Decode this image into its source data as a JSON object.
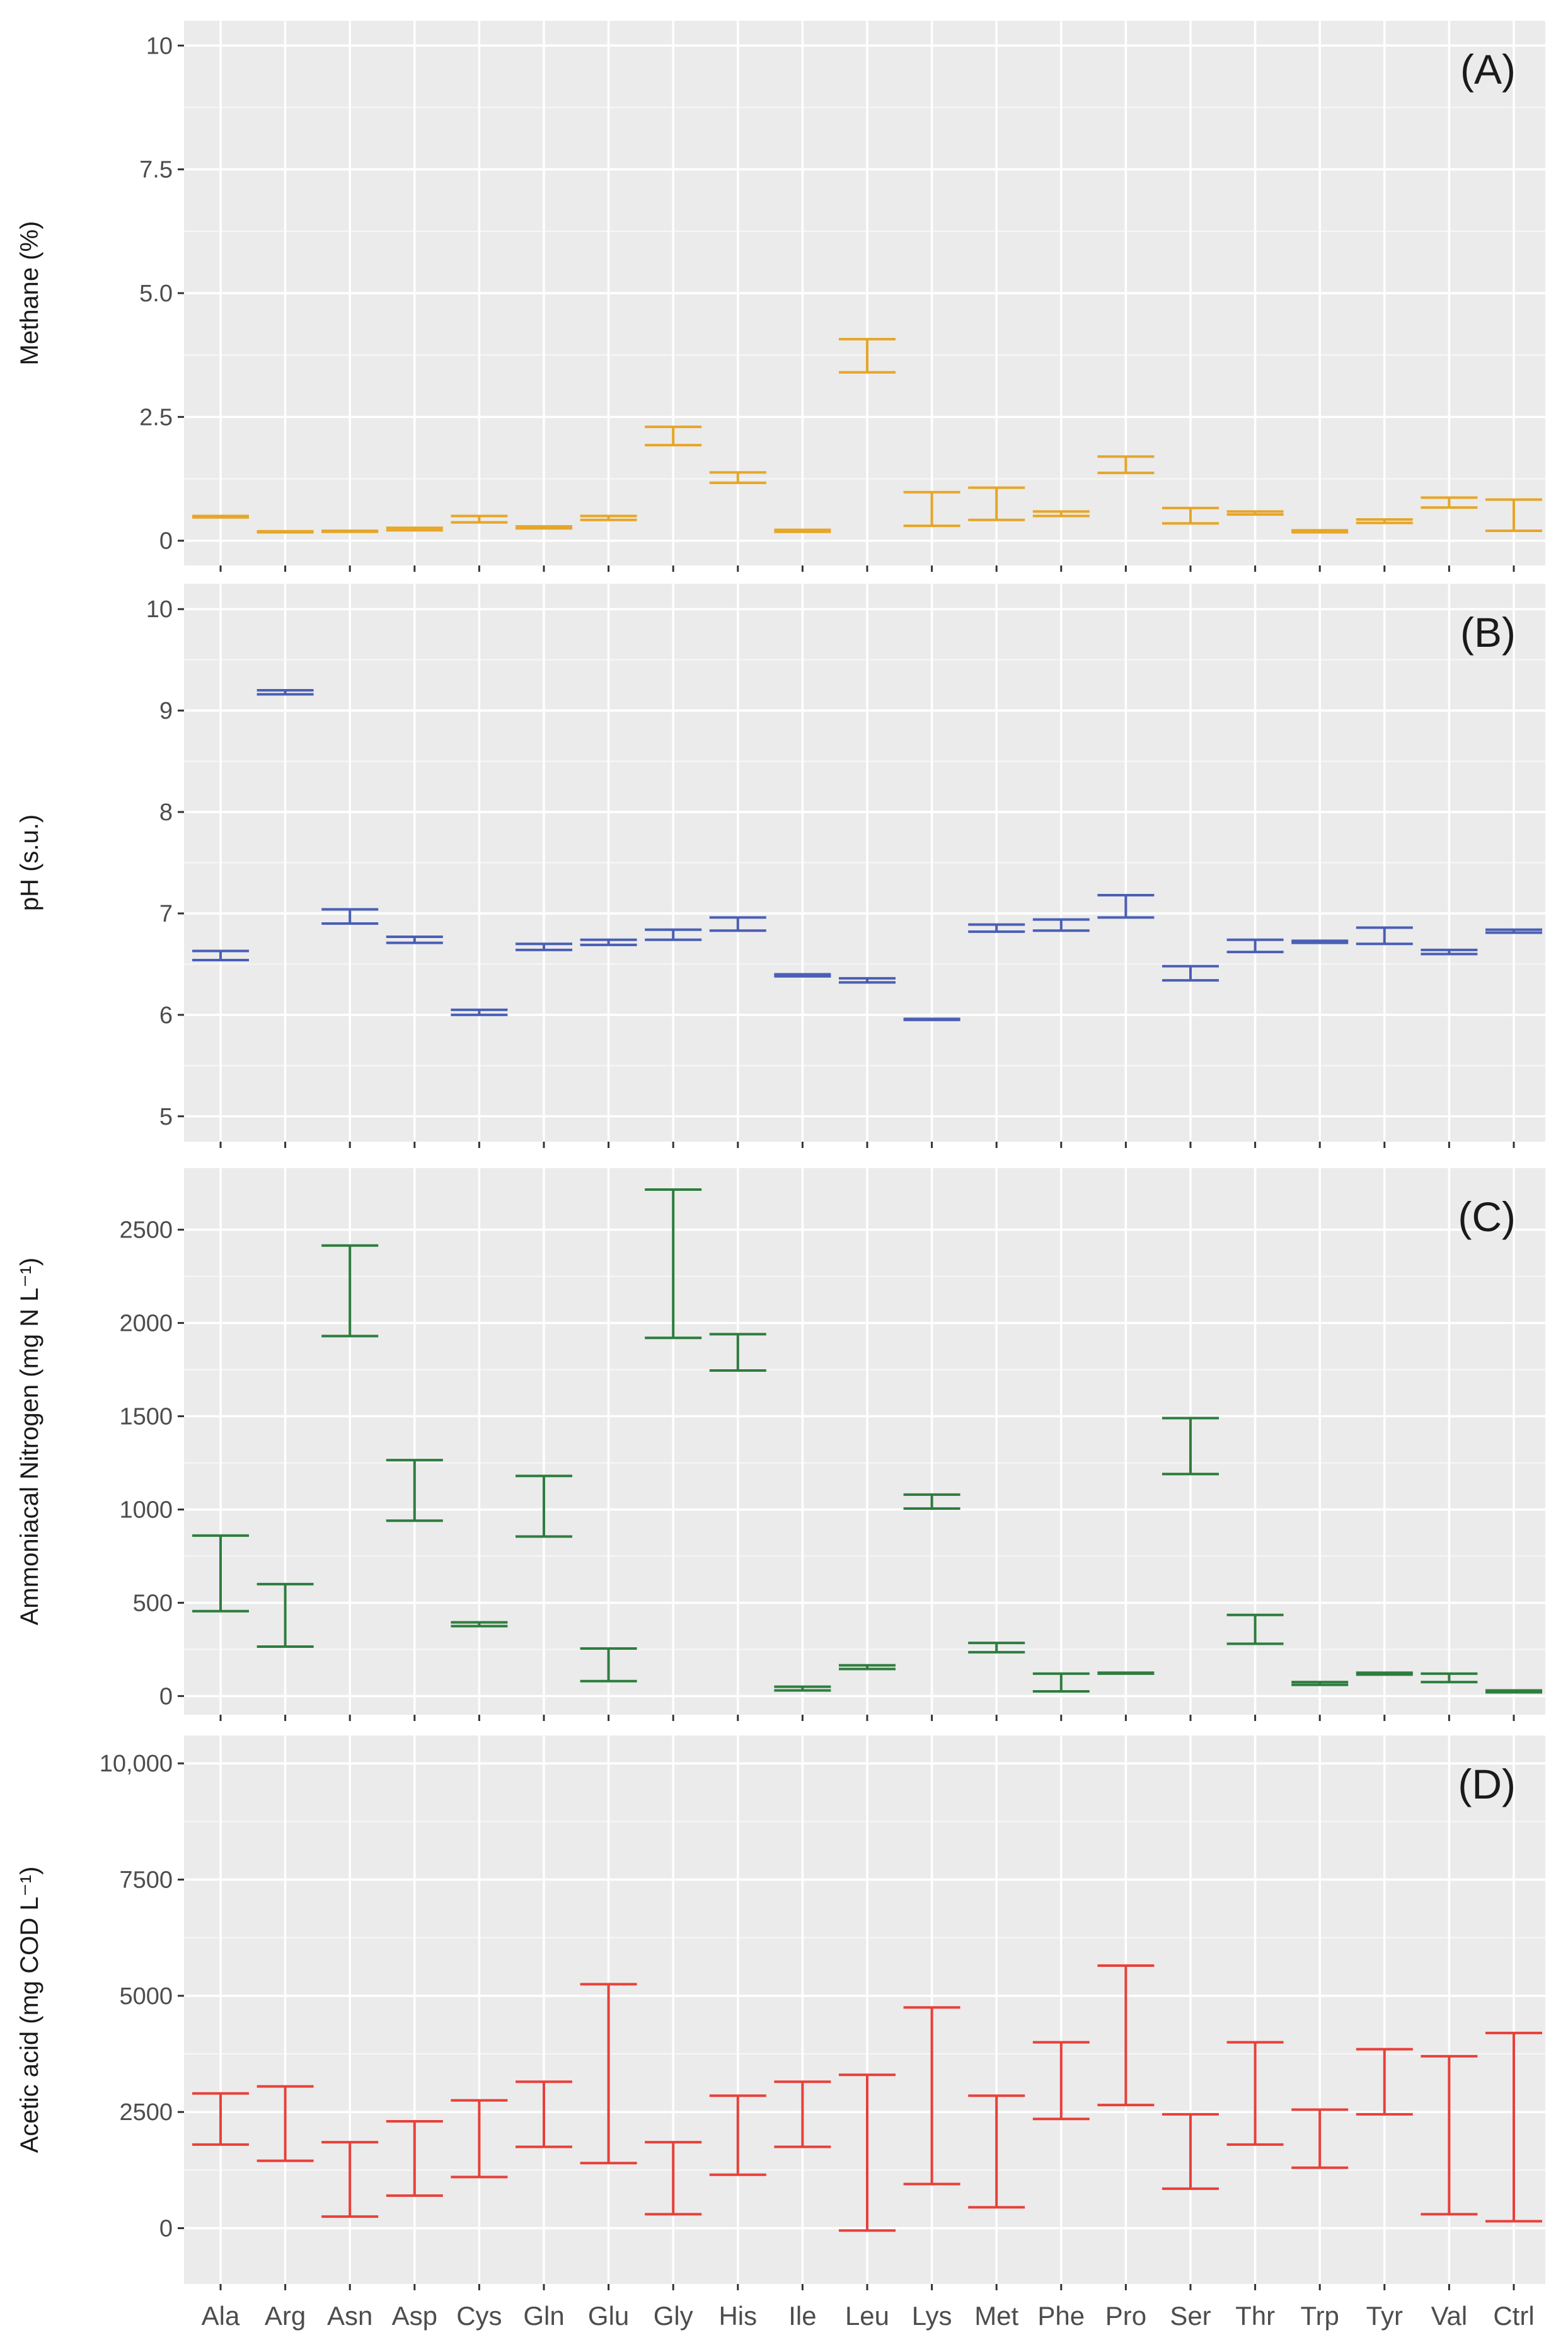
{
  "chart_data": [
    {
      "id": "A",
      "type": "errorbar",
      "panel_label": "(A)",
      "ylabel": "Methane (%)",
      "color": "#E6A627",
      "ylim": [
        -0.5,
        10.5
      ],
      "yticks": [
        0,
        2.5,
        5,
        7.5,
        10
      ],
      "ytick_labels": [
        "0",
        "2.5",
        "5.0",
        "7.5",
        "10"
      ],
      "categories": [
        "Ala",
        "Arg",
        "Asn",
        "Asp",
        "Cys",
        "Gln",
        "Glu",
        "Gly",
        "His",
        "Ile",
        "Leu",
        "Lys",
        "Met",
        "Phe",
        "Pro",
        "Ser",
        "Thr",
        "Trp",
        "Tyr",
        "Val",
        "Ctrl"
      ],
      "low": [
        0.47,
        0.17,
        0.18,
        0.21,
        0.37,
        0.25,
        0.42,
        1.93,
        1.17,
        0.18,
        3.4,
        0.3,
        0.42,
        0.5,
        1.37,
        0.35,
        0.53,
        0.17,
        0.36,
        0.67,
        0.2
      ],
      "high": [
        0.5,
        0.19,
        0.2,
        0.26,
        0.5,
        0.29,
        0.5,
        2.3,
        1.38,
        0.22,
        4.07,
        0.98,
        1.07,
        0.59,
        1.7,
        0.66,
        0.59,
        0.21,
        0.43,
        0.87,
        0.83
      ]
    },
    {
      "id": "B",
      "type": "errorbar",
      "panel_label": "(B)",
      "ylabel": "pH (s.u.)",
      "color": "#4A5FB5",
      "ylim": [
        4.75,
        10.25
      ],
      "yticks": [
        5,
        6,
        7,
        8,
        9,
        10
      ],
      "ytick_labels": [
        "5",
        "6",
        "7",
        "8",
        "9",
        "10"
      ],
      "categories": [
        "Ala",
        "Arg",
        "Asn",
        "Asp",
        "Cys",
        "Gln",
        "Glu",
        "Gly",
        "His",
        "Ile",
        "Leu",
        "Lys",
        "Met",
        "Phe",
        "Pro",
        "Ser",
        "Thr",
        "Trp",
        "Tyr",
        "Val",
        "Ctrl"
      ],
      "low": [
        6.54,
        9.16,
        6.9,
        6.71,
        6.0,
        6.64,
        6.69,
        6.74,
        6.83,
        6.38,
        6.32,
        5.95,
        6.82,
        6.83,
        6.96,
        6.34,
        6.62,
        6.71,
        6.7,
        6.6,
        6.81
      ],
      "high": [
        6.63,
        9.2,
        7.04,
        6.77,
        6.05,
        6.7,
        6.74,
        6.84,
        6.96,
        6.4,
        6.36,
        5.96,
        6.89,
        6.94,
        7.18,
        6.48,
        6.74,
        6.73,
        6.86,
        6.64,
        6.84
      ]
    },
    {
      "id": "C",
      "type": "errorbar",
      "panel_label": "(C)",
      "ylabel": "Ammoniacal Nitrogen (mg N L⁻¹)",
      "color": "#2E7D3E",
      "ylim": [
        -100,
        2830
      ],
      "yticks": [
        0,
        500,
        1000,
        1500,
        2000,
        2500
      ],
      "ytick_labels": [
        "0",
        "500",
        "1000",
        "1500",
        "2000",
        "2500"
      ],
      "categories": [
        "Ala",
        "Arg",
        "Asn",
        "Asp",
        "Cys",
        "Gln",
        "Glu",
        "Gly",
        "His",
        "Ile",
        "Leu",
        "Lys",
        "Met",
        "Phe",
        "Pro",
        "Ser",
        "Thr",
        "Trp",
        "Tyr",
        "Val",
        "Ctrl"
      ],
      "low": [
        455,
        265,
        1930,
        940,
        375,
        855,
        80,
        1920,
        1745,
        30,
        145,
        1005,
        235,
        25,
        120,
        1190,
        280,
        60,
        115,
        75,
        20
      ],
      "high": [
        860,
        600,
        2415,
        1265,
        395,
        1180,
        255,
        2715,
        1940,
        50,
        165,
        1080,
        285,
        120,
        125,
        1490,
        435,
        75,
        125,
        120,
        30
      ]
    },
    {
      "id": "D",
      "type": "errorbar",
      "panel_label": "(D)",
      "ylabel": "Acetic acid  (mg COD L⁻¹)",
      "color": "#E8403A",
      "ylim": [
        -1200,
        10600
      ],
      "yticks": [
        0,
        2500,
        5000,
        7500,
        10000
      ],
      "ytick_labels": [
        "0",
        "2500",
        "5000",
        "7500",
        "10,000"
      ],
      "categories": [
        "Ala",
        "Arg",
        "Asn",
        "Asp",
        "Cys",
        "Gln",
        "Glu",
        "Gly",
        "His",
        "Ile",
        "Leu",
        "Lys",
        "Met",
        "Phe",
        "Pro",
        "Ser",
        "Thr",
        "Trp",
        "Tyr",
        "Val",
        "Ctrl"
      ],
      "low": [
        1800,
        1450,
        250,
        700,
        1100,
        1750,
        1400,
        300,
        1150,
        1750,
        -50,
        950,
        450,
        2350,
        2650,
        850,
        1800,
        1300,
        2450,
        300,
        150
      ],
      "high": [
        2900,
        3050,
        1850,
        2300,
        2750,
        3150,
        5250,
        1850,
        2850,
        3150,
        3300,
        4750,
        2850,
        4000,
        5650,
        2450,
        4000,
        2550,
        3850,
        3700,
        4200
      ]
    }
  ]
}
